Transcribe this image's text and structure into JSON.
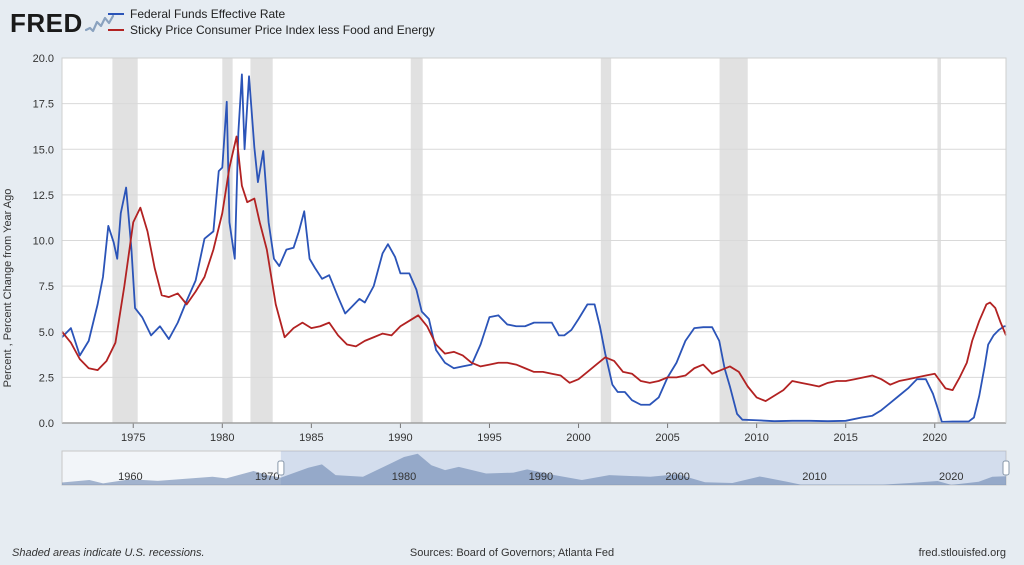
{
  "logo_text": "FRED",
  "legend": {
    "series1": {
      "label": "Federal Funds Effective Rate",
      "color": "#2b54b8"
    },
    "series2": {
      "label": "Sticky Price Consumer Price Index less Food and Energy",
      "color": "#b22222"
    }
  },
  "y_axis": {
    "label": "Percent , Percent Change from Year Ago",
    "min": 0.0,
    "max": 20.0,
    "step": 2.5,
    "ticks": [
      "0.0",
      "2.5",
      "5.0",
      "7.5",
      "10.0",
      "12.5",
      "15.0",
      "17.5",
      "20.0"
    ]
  },
  "x_axis": {
    "min": 1971,
    "max": 2024,
    "ticks": [
      1975,
      1980,
      1985,
      1990,
      1995,
      2000,
      2005,
      2010,
      2015,
      2020
    ]
  },
  "plot": {
    "bg": "#ffffff",
    "grid_color": "#d9d9d9",
    "border_color": "#cfcfcf",
    "recession_fill": "#dcdcdc",
    "recession_opacity": 0.85
  },
  "recessions": [
    [
      1973.83,
      1975.25
    ],
    [
      1980.0,
      1980.58
    ],
    [
      1981.58,
      1982.83
    ],
    [
      1990.58,
      1991.25
    ],
    [
      2001.25,
      2001.83
    ],
    [
      2007.92,
      2009.5
    ],
    [
      2020.15,
      2020.35
    ]
  ],
  "series1_data": [
    [
      1971.0,
      4.7
    ],
    [
      1971.5,
      5.2
    ],
    [
      1972.0,
      3.7
    ],
    [
      1972.5,
      4.5
    ],
    [
      1973.0,
      6.5
    ],
    [
      1973.3,
      8.0
    ],
    [
      1973.6,
      10.8
    ],
    [
      1973.9,
      9.9
    ],
    [
      1974.1,
      9.0
    ],
    [
      1974.3,
      11.5
    ],
    [
      1974.6,
      12.9
    ],
    [
      1974.9,
      9.5
    ],
    [
      1975.1,
      6.3
    ],
    [
      1975.5,
      5.8
    ],
    [
      1976.0,
      4.8
    ],
    [
      1976.5,
      5.3
    ],
    [
      1977.0,
      4.6
    ],
    [
      1977.5,
      5.5
    ],
    [
      1978.0,
      6.7
    ],
    [
      1978.5,
      7.8
    ],
    [
      1979.0,
      10.1
    ],
    [
      1979.5,
      10.5
    ],
    [
      1979.8,
      13.8
    ],
    [
      1980.0,
      14.0
    ],
    [
      1980.25,
      17.6
    ],
    [
      1980.4,
      11.0
    ],
    [
      1980.7,
      9.0
    ],
    [
      1980.9,
      15.9
    ],
    [
      1981.1,
      19.1
    ],
    [
      1981.25,
      15.0
    ],
    [
      1981.5,
      19.0
    ],
    [
      1981.8,
      15.1
    ],
    [
      1982.0,
      13.2
    ],
    [
      1982.3,
      14.9
    ],
    [
      1982.6,
      11.0
    ],
    [
      1982.9,
      9.0
    ],
    [
      1983.2,
      8.6
    ],
    [
      1983.6,
      9.5
    ],
    [
      1984.0,
      9.6
    ],
    [
      1984.3,
      10.5
    ],
    [
      1984.6,
      11.6
    ],
    [
      1984.9,
      9.0
    ],
    [
      1985.2,
      8.5
    ],
    [
      1985.6,
      7.9
    ],
    [
      1986.0,
      8.1
    ],
    [
      1986.5,
      6.9
    ],
    [
      1986.9,
      6.0
    ],
    [
      1987.3,
      6.4
    ],
    [
      1987.7,
      6.8
    ],
    [
      1988.0,
      6.6
    ],
    [
      1988.5,
      7.5
    ],
    [
      1989.0,
      9.3
    ],
    [
      1989.3,
      9.8
    ],
    [
      1989.7,
      9.1
    ],
    [
      1990.0,
      8.2
    ],
    [
      1990.5,
      8.2
    ],
    [
      1990.9,
      7.3
    ],
    [
      1991.2,
      6.1
    ],
    [
      1991.6,
      5.7
    ],
    [
      1992.0,
      4.0
    ],
    [
      1992.5,
      3.3
    ],
    [
      1993.0,
      3.0
    ],
    [
      1993.5,
      3.1
    ],
    [
      1994.0,
      3.2
    ],
    [
      1994.5,
      4.3
    ],
    [
      1995.0,
      5.8
    ],
    [
      1995.5,
      5.9
    ],
    [
      1996.0,
      5.4
    ],
    [
      1996.5,
      5.3
    ],
    [
      1997.0,
      5.3
    ],
    [
      1997.5,
      5.5
    ],
    [
      1998.0,
      5.5
    ],
    [
      1998.5,
      5.5
    ],
    [
      1998.9,
      4.8
    ],
    [
      1999.2,
      4.8
    ],
    [
      1999.6,
      5.1
    ],
    [
      2000.0,
      5.7
    ],
    [
      2000.5,
      6.5
    ],
    [
      2000.9,
      6.5
    ],
    [
      2001.2,
      5.3
    ],
    [
      2001.5,
      3.8
    ],
    [
      2001.9,
      2.1
    ],
    [
      2002.2,
      1.7
    ],
    [
      2002.6,
      1.7
    ],
    [
      2003.0,
      1.25
    ],
    [
      2003.5,
      1.0
    ],
    [
      2004.0,
      1.0
    ],
    [
      2004.5,
      1.4
    ],
    [
      2005.0,
      2.5
    ],
    [
      2005.5,
      3.3
    ],
    [
      2006.0,
      4.5
    ],
    [
      2006.5,
      5.2
    ],
    [
      2007.0,
      5.25
    ],
    [
      2007.5,
      5.25
    ],
    [
      2007.9,
      4.5
    ],
    [
      2008.2,
      3.0
    ],
    [
      2008.5,
      2.0
    ],
    [
      2008.9,
      0.5
    ],
    [
      2009.2,
      0.18
    ],
    [
      2010.0,
      0.15
    ],
    [
      2011.0,
      0.1
    ],
    [
      2012.0,
      0.12
    ],
    [
      2013.0,
      0.12
    ],
    [
      2014.0,
      0.1
    ],
    [
      2015.0,
      0.12
    ],
    [
      2015.9,
      0.3
    ],
    [
      2016.5,
      0.4
    ],
    [
      2017.0,
      0.7
    ],
    [
      2017.5,
      1.1
    ],
    [
      2018.0,
      1.5
    ],
    [
      2018.5,
      1.9
    ],
    [
      2019.0,
      2.4
    ],
    [
      2019.5,
      2.4
    ],
    [
      2019.9,
      1.6
    ],
    [
      2020.2,
      0.7
    ],
    [
      2020.4,
      0.06
    ],
    [
      2021.0,
      0.08
    ],
    [
      2021.9,
      0.08
    ],
    [
      2022.2,
      0.3
    ],
    [
      2022.5,
      1.5
    ],
    [
      2022.8,
      3.1
    ],
    [
      2023.0,
      4.3
    ],
    [
      2023.3,
      4.8
    ],
    [
      2023.6,
      5.1
    ],
    [
      2023.9,
      5.3
    ],
    [
      2024.0,
      5.3
    ]
  ],
  "series2_data": [
    [
      1971.0,
      5.0
    ],
    [
      1971.5,
      4.4
    ],
    [
      1972.0,
      3.5
    ],
    [
      1972.5,
      3.0
    ],
    [
      1973.0,
      2.9
    ],
    [
      1973.5,
      3.4
    ],
    [
      1974.0,
      4.4
    ],
    [
      1974.5,
      7.5
    ],
    [
      1975.0,
      11.0
    ],
    [
      1975.4,
      11.8
    ],
    [
      1975.8,
      10.5
    ],
    [
      1976.2,
      8.5
    ],
    [
      1976.6,
      7.0
    ],
    [
      1977.0,
      6.9
    ],
    [
      1977.5,
      7.1
    ],
    [
      1978.0,
      6.5
    ],
    [
      1978.5,
      7.2
    ],
    [
      1979.0,
      8.0
    ],
    [
      1979.5,
      9.5
    ],
    [
      1980.0,
      11.5
    ],
    [
      1980.4,
      14.0
    ],
    [
      1980.8,
      15.7
    ],
    [
      1981.1,
      13.0
    ],
    [
      1981.4,
      12.1
    ],
    [
      1981.8,
      12.3
    ],
    [
      1982.1,
      11.0
    ],
    [
      1982.5,
      9.5
    ],
    [
      1983.0,
      6.5
    ],
    [
      1983.5,
      4.7
    ],
    [
      1984.0,
      5.2
    ],
    [
      1984.5,
      5.5
    ],
    [
      1985.0,
      5.2
    ],
    [
      1985.5,
      5.3
    ],
    [
      1986.0,
      5.5
    ],
    [
      1986.5,
      4.8
    ],
    [
      1987.0,
      4.3
    ],
    [
      1987.5,
      4.2
    ],
    [
      1988.0,
      4.5
    ],
    [
      1988.5,
      4.7
    ],
    [
      1989.0,
      4.9
    ],
    [
      1989.5,
      4.8
    ],
    [
      1990.0,
      5.3
    ],
    [
      1990.5,
      5.6
    ],
    [
      1991.0,
      5.9
    ],
    [
      1991.5,
      5.3
    ],
    [
      1992.0,
      4.3
    ],
    [
      1992.5,
      3.8
    ],
    [
      1993.0,
      3.9
    ],
    [
      1993.5,
      3.7
    ],
    [
      1994.0,
      3.3
    ],
    [
      1994.5,
      3.1
    ],
    [
      1995.0,
      3.2
    ],
    [
      1995.5,
      3.3
    ],
    [
      1996.0,
      3.3
    ],
    [
      1996.5,
      3.2
    ],
    [
      1997.0,
      3.0
    ],
    [
      1997.5,
      2.8
    ],
    [
      1998.0,
      2.8
    ],
    [
      1998.5,
      2.7
    ],
    [
      1999.0,
      2.6
    ],
    [
      1999.5,
      2.2
    ],
    [
      2000.0,
      2.4
    ],
    [
      2000.5,
      2.8
    ],
    [
      2001.0,
      3.2
    ],
    [
      2001.5,
      3.6
    ],
    [
      2002.0,
      3.4
    ],
    [
      2002.5,
      2.8
    ],
    [
      2003.0,
      2.7
    ],
    [
      2003.5,
      2.3
    ],
    [
      2004.0,
      2.2
    ],
    [
      2004.5,
      2.3
    ],
    [
      2005.0,
      2.5
    ],
    [
      2005.5,
      2.5
    ],
    [
      2006.0,
      2.6
    ],
    [
      2006.5,
      3.0
    ],
    [
      2007.0,
      3.2
    ],
    [
      2007.5,
      2.7
    ],
    [
      2008.0,
      2.9
    ],
    [
      2008.5,
      3.1
    ],
    [
      2009.0,
      2.8
    ],
    [
      2009.5,
      2.0
    ],
    [
      2010.0,
      1.4
    ],
    [
      2010.5,
      1.2
    ],
    [
      2011.0,
      1.5
    ],
    [
      2011.5,
      1.8
    ],
    [
      2012.0,
      2.3
    ],
    [
      2012.5,
      2.2
    ],
    [
      2013.0,
      2.1
    ],
    [
      2013.5,
      2.0
    ],
    [
      2014.0,
      2.2
    ],
    [
      2014.5,
      2.3
    ],
    [
      2015.0,
      2.3
    ],
    [
      2015.5,
      2.4
    ],
    [
      2016.0,
      2.5
    ],
    [
      2016.5,
      2.6
    ],
    [
      2017.0,
      2.4
    ],
    [
      2017.5,
      2.1
    ],
    [
      2018.0,
      2.3
    ],
    [
      2018.5,
      2.4
    ],
    [
      2019.0,
      2.5
    ],
    [
      2019.5,
      2.6
    ],
    [
      2020.0,
      2.7
    ],
    [
      2020.3,
      2.3
    ],
    [
      2020.6,
      1.9
    ],
    [
      2021.0,
      1.8
    ],
    [
      2021.4,
      2.5
    ],
    [
      2021.8,
      3.3
    ],
    [
      2022.1,
      4.5
    ],
    [
      2022.5,
      5.6
    ],
    [
      2022.9,
      6.5
    ],
    [
      2023.1,
      6.6
    ],
    [
      2023.4,
      6.3
    ],
    [
      2023.7,
      5.5
    ],
    [
      2024.0,
      4.8
    ]
  ],
  "overview": {
    "min_year": 1955,
    "max_year": 2024,
    "ticks": [
      1960,
      1970,
      1980,
      1990,
      2000,
      2010,
      2020
    ],
    "window": [
      1971,
      2024
    ],
    "window_fill": "#9cb3d6",
    "window_opacity": 0.35,
    "area_color": "#6d87b0",
    "area_opacity": 0.6,
    "data": [
      [
        1955,
        1.5
      ],
      [
        1957,
        3.0
      ],
      [
        1958,
        1.0
      ],
      [
        1960,
        3.5
      ],
      [
        1962,
        2.5
      ],
      [
        1966,
        5.0
      ],
      [
        1967,
        4.0
      ],
      [
        1969,
        8.5
      ],
      [
        1970,
        6.0
      ],
      [
        1971,
        4.5
      ],
      [
        1973,
        10.5
      ],
      [
        1974,
        12.5
      ],
      [
        1975,
        6.0
      ],
      [
        1977,
        5.0
      ],
      [
        1979,
        13.0
      ],
      [
        1980,
        17.0
      ],
      [
        1981,
        19.0
      ],
      [
        1982,
        12.0
      ],
      [
        1983,
        9.0
      ],
      [
        1984,
        11.0
      ],
      [
        1986,
        7.0
      ],
      [
        1988,
        7.5
      ],
      [
        1989,
        9.5
      ],
      [
        1991,
        6.0
      ],
      [
        1993,
        3.0
      ],
      [
        1995,
        6.0
      ],
      [
        1998,
        5.0
      ],
      [
        2000,
        6.5
      ],
      [
        2002,
        1.7
      ],
      [
        2004,
        1.2
      ],
      [
        2006,
        5.2
      ],
      [
        2008,
        2.0
      ],
      [
        2009,
        0.2
      ],
      [
        2015,
        0.2
      ],
      [
        2017,
        1.2
      ],
      [
        2019,
        2.4
      ],
      [
        2020,
        0.1
      ],
      [
        2022,
        2.0
      ],
      [
        2023,
        5.0
      ],
      [
        2024,
        5.3
      ]
    ]
  },
  "footer": {
    "left": "Shaded areas indicate U.S. recessions.",
    "center": "Sources: Board of Governors; Atlanta Fed",
    "right": "fred.stlouisfed.org"
  }
}
